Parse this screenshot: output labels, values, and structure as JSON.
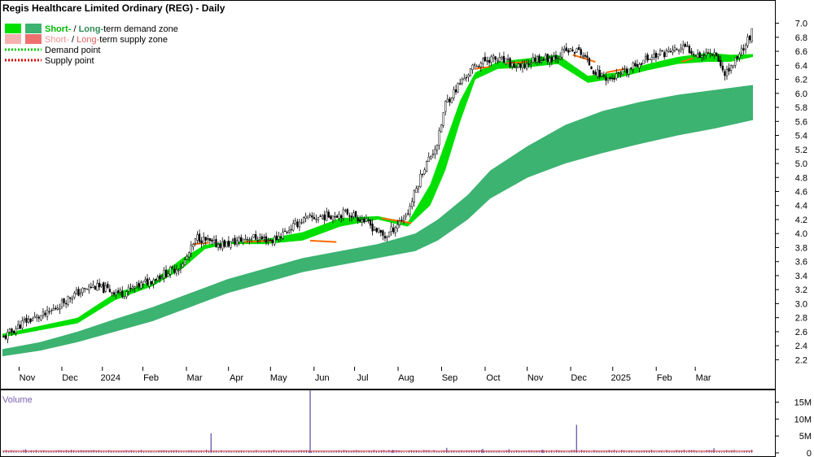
{
  "chart_data": {
    "type": "candlestick",
    "title": "Regis Healthcare Limited Ordinary (REG) - Daily",
    "legend": {
      "demand_zone": {
        "short": "Short-",
        "sep": " / ",
        "long": "Long-",
        "rest": "term demand zone"
      },
      "supply_zone": {
        "short": "Short-",
        "sep": " / ",
        "long": "Long-",
        "rest": "term supply zone"
      },
      "demand_point": "Demand point",
      "supply_point": "Supply point"
    },
    "colors": {
      "short_demand": "#00e000",
      "long_demand": "#3cb371",
      "short_supply": "#f5b0b0",
      "long_supply": "#f07070",
      "demand_point": "#00cc00",
      "supply_point": "#dd0000",
      "short_label": "#00bb00",
      "long_label": "#2e8b57",
      "short_supply_label": "#f09090",
      "long_supply_label": "#e06060",
      "ma_orange": "#ff6a00",
      "volume_bar": "#7060b0",
      "volume_line": "#cc2222"
    },
    "y_axis": {
      "ticks": [
        "2.2",
        "2.4",
        "2.6",
        "2.8",
        "3.0",
        "3.2",
        "3.4",
        "3.6",
        "3.8",
        "4.0",
        "4.2",
        "4.4",
        "4.6",
        "4.8",
        "5.0",
        "5.2",
        "5.4",
        "5.6",
        "5.8",
        "6.0",
        "6.2",
        "6.4",
        "6.6",
        "6.8",
        "7.0"
      ],
      "ylim": [
        2.1,
        7.1
      ]
    },
    "x_axis": {
      "labels": [
        "Nov",
        "Dec",
        "2024",
        "Feb",
        "Mar",
        "Apr",
        "May",
        "Jun",
        "Jul",
        "Aug",
        "Sep",
        "Oct",
        "Nov",
        "Dec",
        "2025",
        "Feb",
        "Mar"
      ],
      "xlim": [
        0,
        100
      ]
    },
    "price_path": {
      "x": [
        0,
        3,
        6,
        9,
        12,
        16,
        20,
        24,
        26,
        28,
        30,
        33,
        36,
        40,
        43,
        46,
        48,
        51,
        54,
        56,
        58,
        59,
        61,
        63,
        65,
        67,
        69,
        71,
        73,
        75,
        77,
        79,
        81,
        83,
        85,
        87,
        89,
        91,
        93,
        95,
        96,
        97,
        98,
        99,
        100
      ],
      "close": [
        2.5,
        2.75,
        2.85,
        3.1,
        3.25,
        3.15,
        3.35,
        3.55,
        3.95,
        3.85,
        3.85,
        3.95,
        3.9,
        4.2,
        4.25,
        4.3,
        4.2,
        3.95,
        4.3,
        4.9,
        5.3,
        5.85,
        6.15,
        6.4,
        6.5,
        6.45,
        6.35,
        6.5,
        6.5,
        6.6,
        6.6,
        6.3,
        6.2,
        6.3,
        6.45,
        6.55,
        6.6,
        6.65,
        6.55,
        6.6,
        6.3,
        6.35,
        6.55,
        6.7,
        6.9
      ]
    },
    "short_term_zone": {
      "x": [
        0,
        10,
        15,
        20,
        24,
        27,
        30,
        35,
        40,
        45,
        50,
        54,
        57,
        59,
        61,
        63,
        66,
        70,
        74,
        78,
        82,
        86,
        90,
        94,
        97,
        100
      ],
      "lower": [
        2.52,
        2.72,
        3.05,
        3.25,
        3.5,
        3.78,
        3.85,
        3.85,
        3.9,
        4.1,
        4.2,
        4.1,
        4.4,
        4.9,
        5.6,
        6.2,
        6.35,
        6.37,
        6.42,
        6.15,
        6.22,
        6.33,
        6.42,
        6.45,
        6.45,
        6.52
      ],
      "upper": [
        2.57,
        2.8,
        3.15,
        3.32,
        3.65,
        3.84,
        3.88,
        3.92,
        4.02,
        4.22,
        4.25,
        4.16,
        4.7,
        5.3,
        5.9,
        6.3,
        6.45,
        6.5,
        6.55,
        6.25,
        6.3,
        6.42,
        6.52,
        6.58,
        6.55,
        6.56
      ]
    },
    "long_term_zone": {
      "x": [
        0,
        5,
        10,
        15,
        20,
        25,
        30,
        35,
        40,
        45,
        50,
        55,
        58,
        62,
        65,
        70,
        75,
        80,
        85,
        90,
        95,
        100
      ],
      "lower": [
        2.25,
        2.33,
        2.45,
        2.6,
        2.75,
        2.95,
        3.15,
        3.3,
        3.45,
        3.55,
        3.65,
        3.75,
        3.9,
        4.2,
        4.5,
        4.8,
        5.0,
        5.15,
        5.28,
        5.4,
        5.5,
        5.62
      ],
      "upper": [
        2.35,
        2.45,
        2.6,
        2.78,
        2.95,
        3.15,
        3.35,
        3.5,
        3.65,
        3.75,
        3.85,
        4.0,
        4.2,
        4.55,
        4.9,
        5.25,
        5.55,
        5.75,
        5.88,
        5.98,
        6.05,
        6.12
      ]
    },
    "supply_segments": [
      {
        "x": [
          25.5,
          27.5
        ],
        "y": [
          3.85,
          3.87
        ]
      },
      {
        "x": [
          32,
          36
        ],
        "y": [
          3.88,
          3.9
        ]
      },
      {
        "x": [
          41,
          44.5
        ],
        "y": [
          3.9,
          3.88
        ]
      },
      {
        "x": [
          50.5,
          54.5
        ],
        "y": [
          4.22,
          4.15
        ]
      },
      {
        "x": [
          63,
          65
        ],
        "y": [
          6.35,
          6.38
        ]
      },
      {
        "x": [
          67,
          70
        ],
        "y": [
          6.43,
          6.45
        ]
      },
      {
        "x": [
          76,
          79
        ],
        "y": [
          6.55,
          6.45
        ]
      },
      {
        "x": [
          80.5,
          83
        ],
        "y": [
          6.3,
          6.35
        ]
      },
      {
        "x": [
          90.5,
          92
        ],
        "y": [
          6.45,
          6.5
        ]
      }
    ],
    "volume": {
      "label": "Volume",
      "ticks": [
        "15M",
        "10M",
        "5M",
        "0"
      ],
      "ylim": [
        0,
        18
      ],
      "baseline_m": 0.5,
      "spikes": [
        {
          "x": 27.8,
          "v": 5.8
        },
        {
          "x": 41.0,
          "v": 18.5
        },
        {
          "x": 76.5,
          "v": 8.3
        },
        {
          "x": 59.2,
          "v": 1.5
        },
        {
          "x": 64.0,
          "v": 1.2
        },
        {
          "x": 67.5,
          "v": 1.1
        },
        {
          "x": 72.0,
          "v": 1.0
        },
        {
          "x": 94.8,
          "v": 1.4
        },
        {
          "x": 3.1,
          "v": 1.1
        },
        {
          "x": 52.0,
          "v": 0.9
        }
      ]
    }
  }
}
